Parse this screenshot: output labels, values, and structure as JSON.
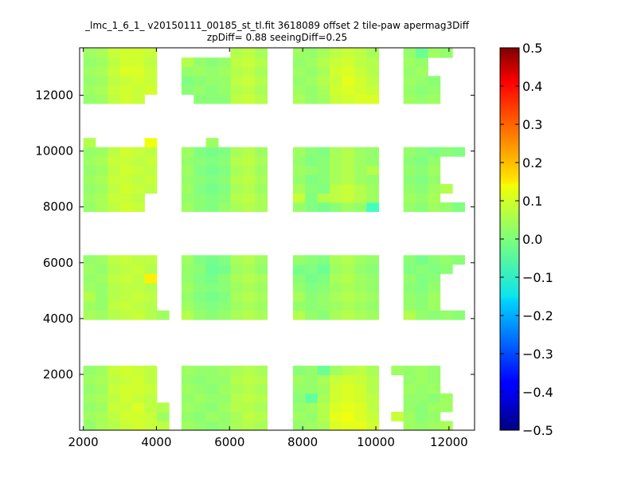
{
  "chart_data": {
    "type": "heatmap",
    "title": "_lmc_1_6_1_ v20150111_00185_st_tl.fit 3618089 offset 2 tile-paw apermag3Diff",
    "subtitle": "zpDiff= 0.88 seeingDiff=0.25",
    "xlabel": "",
    "ylabel": "",
    "xlim": [
      1900,
      12700
    ],
    "ylim": [
      0,
      13700
    ],
    "x_ticks": [
      2000,
      4000,
      6000,
      8000,
      10000,
      12000
    ],
    "y_ticks": [
      2000,
      4000,
      6000,
      8000,
      10000,
      12000
    ],
    "colorbar": {
      "min": -0.5,
      "max": 0.5,
      "ticks": [
        "-0.5",
        "-0.4",
        "-0.3",
        "-0.2",
        "-0.1",
        "0.0",
        "0.1",
        "0.2",
        "0.3",
        "0.4",
        "0.5"
      ],
      "colormap": "jet"
    },
    "cell_size": [
      335,
      330
    ],
    "column_x": [
      2000,
      2335,
      2670,
      3005,
      3340,
      3675,
      4010,
      4685,
      5020,
      5355,
      5690,
      6025,
      6360,
      6695,
      7735,
      8070,
      8405,
      8740,
      9075,
      9410,
      9745,
      10420,
      10755,
      11090,
      11425,
      11760,
      12095
    ],
    "row_y": [
      0,
      330,
      660,
      990,
      1320,
      1650,
      1980,
      3960,
      4290,
      4620,
      4950,
      5280,
      5610,
      5940,
      7830,
      8160,
      8490,
      8820,
      9150,
      9480,
      9810,
      10140,
      11700,
      12030,
      12360,
      12690,
      13020,
      13350
    ],
    "z": [
      [
        0.02,
        0.04,
        0.05,
        0.07,
        0.08,
        0.07,
        0.06,
        0.03,
        0.02,
        0.01,
        0.02,
        0.04,
        0.05,
        0.04,
        0.02,
        0.03,
        0.04,
        0.09,
        0.1,
        0.1,
        0.08,
        null,
        0.03,
        0.02,
        0.03,
        0.04,
        null
      ],
      [
        0.03,
        0.04,
        0.06,
        0.08,
        0.08,
        0.07,
        0.03,
        0.02,
        0.01,
        0.03,
        0.02,
        0.04,
        0.06,
        0.05,
        0.03,
        0.02,
        0.05,
        0.1,
        0.11,
        0.09,
        0.07,
        0.07,
        0.03,
        0.01,
        0.02,
        null,
        null
      ],
      [
        0.02,
        0.03,
        0.07,
        0.07,
        0.09,
        0.06,
        0.05,
        0.03,
        0.02,
        0.01,
        0.03,
        0.05,
        0.05,
        0.04,
        0.02,
        0.03,
        0.05,
        0.09,
        0.1,
        0.09,
        0.06,
        null,
        0.02,
        0.01,
        0.03,
        0.03,
        null
      ],
      [
        0.03,
        0.04,
        0.06,
        0.08,
        0.07,
        0.06,
        null,
        0.02,
        0.03,
        0.02,
        0.02,
        0.05,
        0.06,
        0.05,
        0.01,
        -0.03,
        0.04,
        0.08,
        0.09,
        0.08,
        0.06,
        null,
        0.02,
        0.02,
        0.01,
        0.03,
        null
      ],
      [
        0.02,
        0.03,
        0.07,
        0.08,
        0.08,
        0.07,
        null,
        0.03,
        0.02,
        0.01,
        0.03,
        0.04,
        0.05,
        0.04,
        0.02,
        0.02,
        0.03,
        0.08,
        0.09,
        0.08,
        0.05,
        null,
        0.03,
        0.02,
        0.03,
        null,
        null
      ],
      [
        0.03,
        0.04,
        0.06,
        0.07,
        0.08,
        0.06,
        null,
        0.02,
        0.01,
        0.02,
        0.02,
        0.05,
        0.06,
        0.05,
        0.03,
        0.02,
        0.04,
        0.07,
        0.08,
        0.07,
        0.05,
        null,
        0.02,
        0.03,
        0.02,
        null,
        null
      ],
      [
        0.02,
        0.03,
        0.07,
        0.08,
        0.07,
        0.06,
        null,
        0.03,
        0.02,
        0.02,
        0.03,
        0.04,
        0.05,
        0.04,
        0.01,
        0.02,
        -0.02,
        0.03,
        0.05,
        0.06,
        0.04,
        0.03,
        0.02,
        0.03,
        0.02,
        null,
        null
      ],
      [
        0.04,
        0.03,
        0.05,
        0.06,
        0.07,
        0.05,
        0.03,
        0.05,
        0.02,
        0.01,
        0.02,
        0.04,
        0.05,
        0.04,
        0.05,
        0.02,
        0.01,
        0.04,
        0.05,
        0.04,
        0.03,
        null,
        0.05,
        0.02,
        0.01,
        0.02,
        0.01
      ],
      [
        0.03,
        0.02,
        0.06,
        0.07,
        0.06,
        0.05,
        null,
        0.03,
        0.01,
        0.0,
        0.01,
        0.03,
        0.04,
        0.03,
        0.02,
        0.01,
        0.02,
        0.03,
        0.04,
        0.03,
        0.02,
        null,
        0.02,
        0.01,
        0.03,
        null,
        null
      ],
      [
        0.05,
        0.02,
        0.05,
        0.06,
        0.07,
        0.06,
        null,
        0.02,
        0.0,
        -0.01,
        0.0,
        0.04,
        0.05,
        0.04,
        0.04,
        0.01,
        0.02,
        0.04,
        0.05,
        0.04,
        0.03,
        null,
        0.02,
        0.01,
        0.03,
        null,
        null
      ],
      [
        0.03,
        0.02,
        0.05,
        0.06,
        0.06,
        0.05,
        null,
        0.03,
        0.01,
        0.0,
        0.01,
        0.03,
        0.04,
        0.03,
        0.02,
        0.0,
        0.01,
        0.03,
        0.04,
        0.03,
        0.02,
        null,
        0.01,
        0.0,
        0.02,
        null,
        null
      ],
      [
        0.02,
        0.03,
        0.06,
        0.07,
        0.06,
        0.14,
        null,
        0.02,
        0.0,
        -0.01,
        0.01,
        0.04,
        0.05,
        0.04,
        0.01,
        -0.01,
        0.0,
        0.04,
        0.05,
        0.03,
        0.02,
        null,
        0.02,
        0.0,
        0.01,
        null,
        null
      ],
      [
        0.03,
        0.02,
        0.05,
        0.06,
        0.07,
        0.05,
        null,
        0.02,
        0.01,
        -0.02,
        -0.01,
        0.03,
        0.04,
        0.02,
        -0.01,
        0.0,
        -0.02,
        0.03,
        0.04,
        0.02,
        0.01,
        null,
        0.0,
        0.01,
        0.0,
        0.01,
        null
      ],
      [
        0.02,
        0.03,
        0.06,
        0.07,
        0.06,
        0.06,
        null,
        0.03,
        0.0,
        -0.01,
        0.0,
        0.04,
        0.05,
        0.03,
        0.02,
        0.01,
        0.0,
        0.04,
        0.05,
        0.03,
        0.02,
        null,
        0.01,
        -0.01,
        0.01,
        0.02,
        0.01
      ],
      [
        0.02,
        0.04,
        0.06,
        0.08,
        0.07,
        null,
        null,
        0.03,
        0.01,
        0.0,
        0.02,
        0.04,
        0.05,
        0.04,
        0.02,
        0.0,
        -0.01,
        0.01,
        0.03,
        0.02,
        -0.06,
        null,
        0.02,
        0.01,
        0.03,
        0.02,
        0.0
      ],
      [
        0.03,
        0.04,
        0.07,
        0.07,
        0.06,
        null,
        null,
        0.02,
        0.01,
        0.0,
        0.01,
        0.05,
        0.06,
        0.04,
        0.07,
        0.0,
        0.05,
        0.06,
        0.07,
        0.05,
        0.03,
        null,
        0.03,
        0.02,
        0.04,
        null,
        null
      ],
      [
        0.02,
        0.03,
        0.06,
        0.08,
        0.07,
        0.06,
        null,
        0.03,
        0.0,
        -0.01,
        0.0,
        0.04,
        0.05,
        0.03,
        0.04,
        0.01,
        0.0,
        0.06,
        0.07,
        0.05,
        0.03,
        null,
        0.02,
        0.01,
        0.03,
        0.05,
        null
      ],
      [
        0.03,
        0.04,
        0.07,
        0.07,
        0.06,
        0.07,
        null,
        0.02,
        0.01,
        0.0,
        0.01,
        0.05,
        0.06,
        0.04,
        0.02,
        0.0,
        0.01,
        0.04,
        0.05,
        0.03,
        0.02,
        null,
        0.01,
        0.0,
        0.02,
        null,
        null
      ],
      [
        0.02,
        0.03,
        0.06,
        0.08,
        0.07,
        0.06,
        null,
        0.03,
        0.0,
        -0.01,
        0.0,
        0.04,
        0.05,
        0.03,
        0.03,
        0.02,
        0.01,
        0.04,
        0.05,
        0.03,
        0.05,
        null,
        0.02,
        0.01,
        0.03,
        null,
        null
      ],
      [
        0.03,
        0.04,
        0.07,
        0.07,
        0.06,
        0.07,
        null,
        0.02,
        0.01,
        0.0,
        0.01,
        0.05,
        0.06,
        0.04,
        0.02,
        0.0,
        0.01,
        0.04,
        0.05,
        0.03,
        0.02,
        null,
        0.01,
        0.0,
        0.02,
        null,
        null
      ],
      [
        0.02,
        0.03,
        0.06,
        0.08,
        0.07,
        0.06,
        null,
        0.03,
        0.0,
        -0.01,
        0.0,
        0.04,
        0.05,
        0.03,
        0.03,
        0.01,
        0.0,
        0.04,
        0.05,
        0.03,
        0.02,
        null,
        0.02,
        0.01,
        0.0,
        0.01,
        0.0
      ],
      [
        0.05,
        null,
        null,
        null,
        null,
        0.11,
        null,
        null,
        null,
        0.03,
        null,
        null,
        null,
        null,
        null,
        null,
        null,
        null,
        null,
        null,
        null,
        null,
        null,
        null,
        null,
        null,
        null
      ],
      [
        0.02,
        0.03,
        0.06,
        0.08,
        0.07,
        null,
        null,
        null,
        0.01,
        0.01,
        0.01,
        0.06,
        0.07,
        0.05,
        0.04,
        0.02,
        0.03,
        0.07,
        0.08,
        0.09,
        0.09,
        null,
        0.03,
        0.02,
        0.03,
        null,
        null
      ],
      [
        0.03,
        0.04,
        0.07,
        0.08,
        0.07,
        0.08,
        null,
        0.01,
        0.02,
        0.01,
        0.02,
        0.05,
        0.06,
        0.04,
        0.03,
        0.02,
        0.04,
        0.08,
        0.09,
        0.08,
        0.07,
        null,
        0.02,
        0.01,
        0.02,
        null,
        null
      ],
      [
        0.02,
        0.03,
        0.06,
        0.07,
        0.08,
        0.07,
        null,
        0.0,
        0.01,
        0.02,
        0.02,
        0.06,
        0.07,
        0.05,
        0.02,
        0.03,
        0.05,
        0.07,
        0.1,
        0.08,
        0.06,
        null,
        0.03,
        0.02,
        0.01,
        null,
        null
      ],
      [
        0.03,
        0.04,
        0.07,
        0.09,
        0.09,
        0.07,
        null,
        0.02,
        0.03,
        0.02,
        0.03,
        0.05,
        0.06,
        0.04,
        0.03,
        0.02,
        0.04,
        0.08,
        0.09,
        0.07,
        0.05,
        null,
        0.02,
        0.03,
        null,
        null,
        null
      ],
      [
        0.02,
        0.03,
        0.06,
        0.08,
        0.08,
        0.06,
        null,
        0.05,
        0.02,
        0.01,
        0.02,
        0.06,
        0.07,
        0.05,
        0.02,
        0.03,
        0.05,
        0.07,
        0.08,
        0.06,
        0.05,
        null,
        0.03,
        0.02,
        null,
        null,
        null
      ],
      [
        0.03,
        0.04,
        0.07,
        0.08,
        0.08,
        0.07,
        null,
        null,
        null,
        null,
        null,
        0.05,
        0.06,
        0.04,
        0.03,
        0.02,
        0.04,
        0.06,
        0.07,
        0.06,
        0.04,
        null,
        0.02,
        -0.02,
        0.03,
        0.02,
        null
      ]
    ]
  }
}
